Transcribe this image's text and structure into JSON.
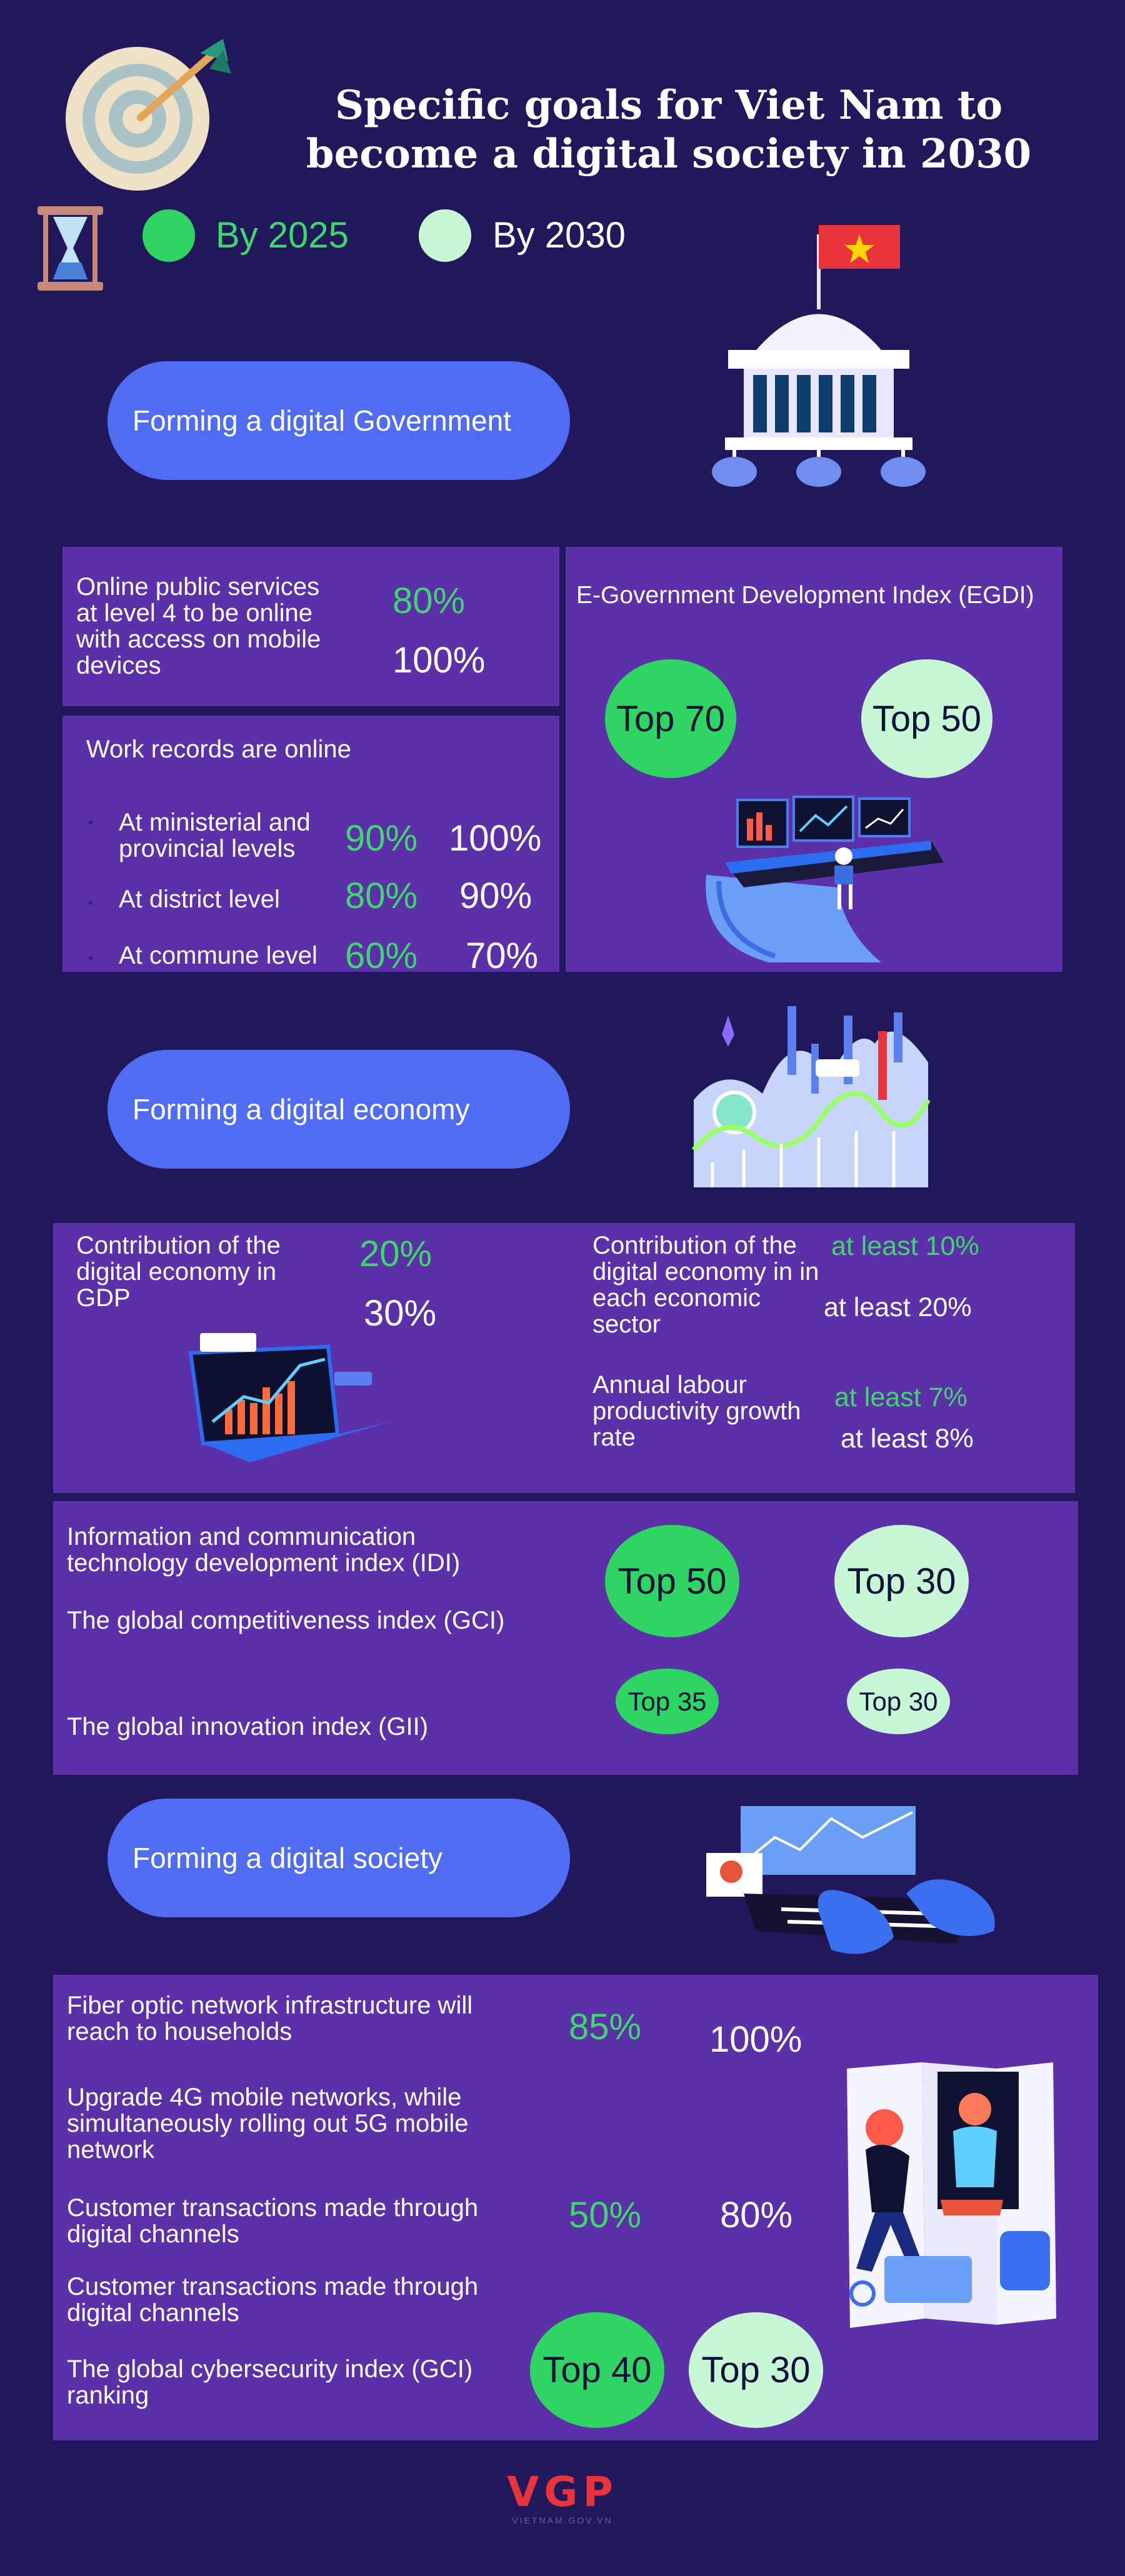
{
  "title_line1": "Specific goals for Viet Nam to",
  "title_line2": "become a digital society in 2030",
  "legend": {
    "by2025": "By 2025",
    "by2030": "By 2030"
  },
  "colors": {
    "background": "#20185a",
    "panel": "#5c30a8",
    "pill": "#4f6cf3",
    "goal2025": "#2ed562",
    "goal2030": "#c8f7d6"
  },
  "icons": [
    "target-icon",
    "hourglass-icon",
    "government-building-icon",
    "vietnam-flag-icon",
    "digital-workstation-icon",
    "growth-chart-icon",
    "laptop-chart-icon",
    "typing-hands-icon",
    "digital-society-people-icon",
    "vgp-logo"
  ],
  "gov": {
    "pill": "Forming a digital Government",
    "online_services": {
      "label": "Online public services at level 4 to be online with access on mobile devices",
      "v2025": "80%",
      "v2030": "100%"
    },
    "work_records": {
      "heading": "Work records are online",
      "rows": [
        {
          "label": "At ministerial and provincial levels",
          "v2025": "90%",
          "v2030": "100%"
        },
        {
          "label": "At district level",
          "v2025": "80%",
          "v2030": "90%"
        },
        {
          "label": "At commune level",
          "v2025": "60%",
          "v2030": "70%"
        }
      ]
    },
    "egdi": {
      "label": "E-Government Development Index (EGDI)",
      "v2025": "Top 70",
      "v2030": "Top 50"
    }
  },
  "economy": {
    "pill": "Forming a digital economy",
    "gdp": {
      "label": "Contribution of the digital economy in GDP",
      "v2025": "20%",
      "v2030": "30%"
    },
    "sector": {
      "label": "Contribution of the digital economy in in each economic sector",
      "v2025": "at least 10%",
      "v2030": "at least 20%"
    },
    "labour": {
      "label": "Annual labour productivity growth rate",
      "v2025": "at least 7%",
      "v2030": "at least 8%"
    },
    "idi": {
      "label": "Information and communication technology development index (IDI)"
    },
    "gci": {
      "label": "The global competitiveness index (GCI)",
      "v2025": "Top 50",
      "v2030": "Top 30"
    },
    "gii": {
      "label": "The global innovation index (GII)",
      "v2025": "Top 35",
      "v2030": "Top 30"
    }
  },
  "society": {
    "pill": "Forming a digital society",
    "fiber": {
      "label": "Fiber optic network infrastructure will reach to households",
      "v2025": "85%",
      "v2030": "100%"
    },
    "mobile": {
      "label": "Upgrade 4G mobile networks, while simultaneously rolling out 5G mobile network"
    },
    "transactions1": {
      "label": "Customer transactions made through digital channels",
      "v2025": "50%",
      "v2030": "80%"
    },
    "transactions2": {
      "label": "Customer transactions made through digital channels"
    },
    "cyber": {
      "label": "The global cybersecurity index (GCI) ranking",
      "v2025": "Top 40",
      "v2030": "Top 30"
    }
  },
  "footer": {
    "logo_text": "VGP",
    "url": "VIETNAM.GOV.VN"
  }
}
